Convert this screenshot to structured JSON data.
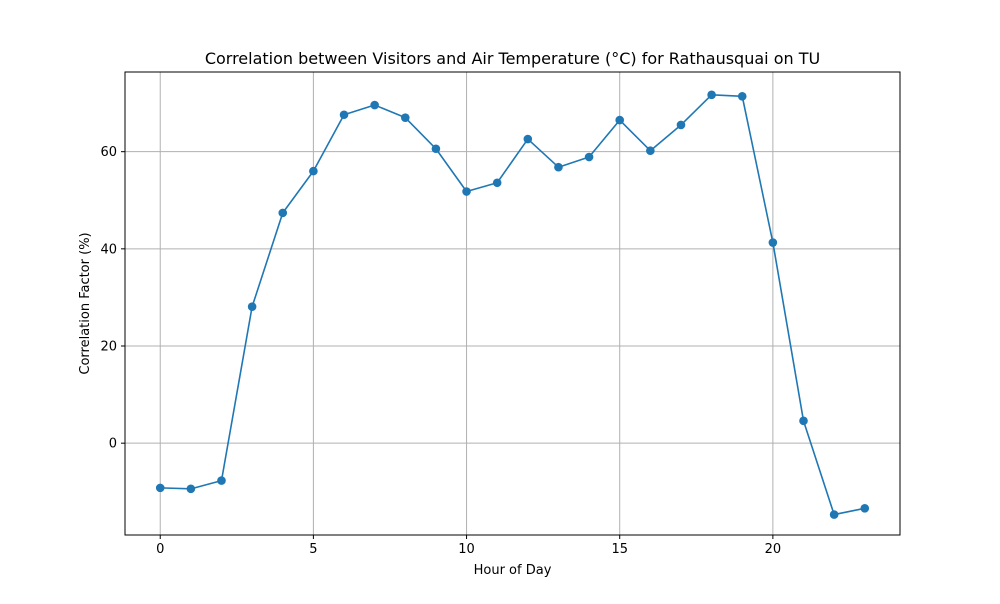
{
  "chart_data": {
    "type": "line",
    "title": "Correlation between Visitors and Air Temperature (°C) for Rathausquai on TU",
    "xlabel": "Hour of Day",
    "ylabel": "Correlation Factor (%)",
    "xlim": [
      -1.15,
      24.15
    ],
    "ylim": [
      -18.9,
      76.4
    ],
    "xticks": [
      0,
      5,
      10,
      15,
      20
    ],
    "yticks": [
      0,
      20,
      40,
      60
    ],
    "grid": true,
    "series": [
      {
        "color": "#1f77b4",
        "marker": "circle",
        "x": [
          0,
          1,
          2,
          3,
          4,
          5,
          6,
          7,
          8,
          9,
          10,
          11,
          12,
          13,
          14,
          15,
          16,
          17,
          18,
          19,
          20,
          21,
          22,
          23
        ],
        "y": [
          -9.2,
          -9.4,
          -7.7,
          28.1,
          47.4,
          56.0,
          67.6,
          69.6,
          67.0,
          60.6,
          51.8,
          53.6,
          62.6,
          56.8,
          58.9,
          66.5,
          60.2,
          65.5,
          71.7,
          71.4,
          41.3,
          4.6,
          -14.7,
          -13.4
        ]
      }
    ]
  }
}
